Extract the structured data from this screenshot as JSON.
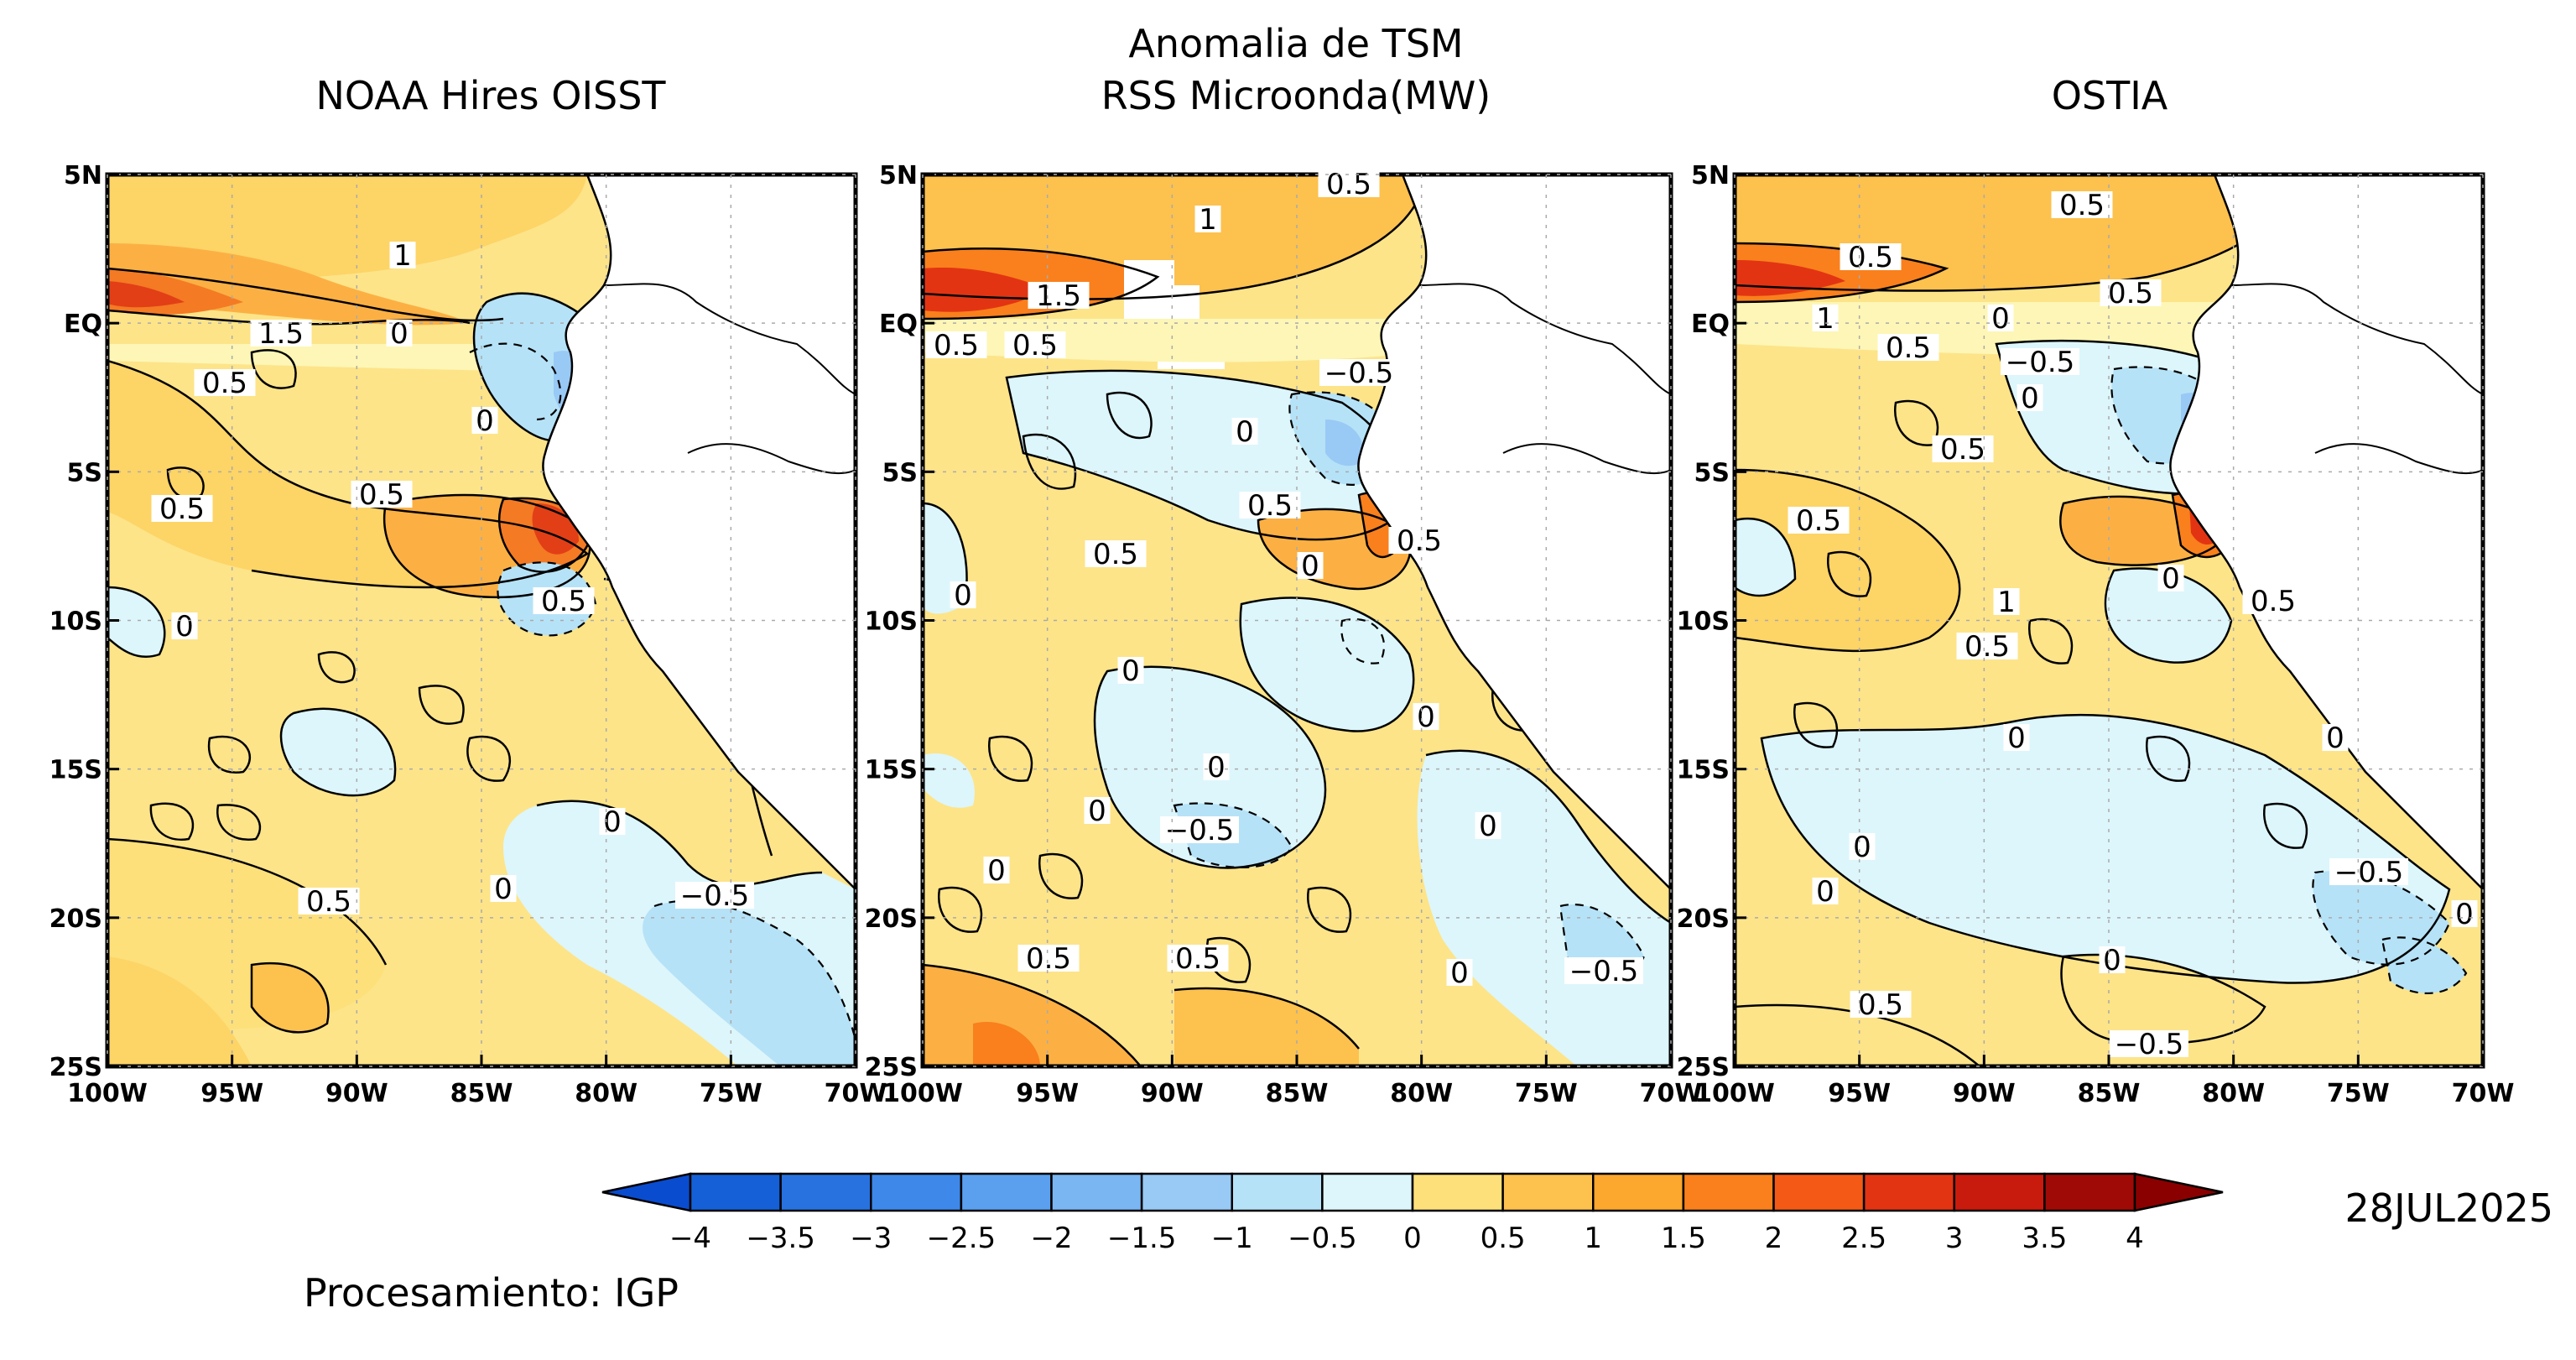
{
  "figure": {
    "main_title_line1": "Anomalia de TSM",
    "date": "28JUL2025",
    "credit": "Procesamiento: IGP"
  },
  "panels": [
    {
      "title": "NOAA Hires OISST",
      "contour_labels": [
        "1",
        "1.5",
        "0",
        "0.5",
        "0",
        "0.5",
        "0.5",
        "0",
        "0.5",
        "0",
        "0",
        "−0.5",
        "0.5"
      ]
    },
    {
      "title": "RSS Microonda(MW)",
      "contour_labels": [
        "0.5",
        "1",
        "1.5",
        "0.5",
        "0.5",
        "−0.5",
        "0",
        "0.5",
        "0.5",
        "0.5",
        "0",
        "0",
        "0",
        "0",
        "0",
        "0",
        "−0.5",
        "0",
        "0",
        "0.5",
        "0.5",
        "0",
        "−0.5"
      ]
    },
    {
      "title": "OSTIA",
      "contour_labels": [
        "0.5",
        "0.5",
        "0.5",
        "1",
        "0",
        "0.5",
        "−0.5",
        "0",
        "0.5",
        "0.5",
        "0",
        "1",
        "0.5",
        "0.5",
        "0",
        "0",
        "0",
        "−0.5",
        "0",
        "0",
        "0.5",
        "0",
        "−0.5"
      ]
    }
  ],
  "axes": {
    "lat_ticks": [
      "5N",
      "EQ",
      "5S",
      "10S",
      "15S",
      "20S",
      "25S"
    ],
    "lon_ticks": [
      "100W",
      "95W",
      "90W",
      "85W",
      "80W",
      "75W",
      "70W"
    ],
    "lat_values": [
      5,
      0,
      -5,
      -10,
      -15,
      -20,
      -25
    ],
    "lon_values": [
      -100,
      -95,
      -90,
      -85,
      -80,
      -75,
      -70
    ]
  },
  "colorbar": {
    "labels": [
      "−4",
      "−3.5",
      "−3",
      "−2.5",
      "−2",
      "−1.5",
      "−1",
      "−0.5",
      "0",
      "0.5",
      "1",
      "1.5",
      "2",
      "2.5",
      "3",
      "3.5",
      "4"
    ],
    "colors": [
      "#1560d6",
      "#2872e0",
      "#3e88ea",
      "#5aa0ef",
      "#7ab6f2",
      "#99c9f5",
      "#b6e2f7",
      "#ddf6fb",
      "#fdf6b6",
      "#fde07a",
      "#fdc14e",
      "#fca72d",
      "#f9801c",
      "#f45a16",
      "#e23413",
      "#c91a0e",
      "#a00a06"
    ]
  }
}
